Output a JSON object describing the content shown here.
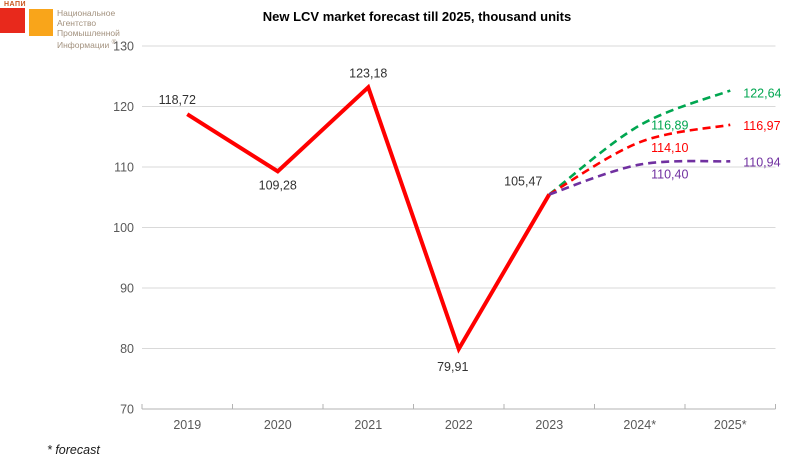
{
  "logo": {
    "brand_small": "НАПИ",
    "lines": [
      "Национальное",
      "Агентство",
      "Промышленной",
      "Информации"
    ],
    "registered_mark": "®",
    "colors": {
      "red_square": "#e8291c",
      "orange_square": "#f9a51a"
    }
  },
  "footnote": "* forecast",
  "chart_data": {
    "type": "line",
    "title": "New LCV market forecast till 2025, thousand units",
    "categories": [
      "2019",
      "2020",
      "2021",
      "2022",
      "2023",
      "2024*",
      "2025*"
    ],
    "y_ticks": [
      70,
      80,
      90,
      100,
      110,
      120,
      130
    ],
    "ylim": [
      70,
      130
    ],
    "grid": "horizontal",
    "legend": "none",
    "series": [
      {
        "name": "actual",
        "style": "solid",
        "color": "#ff0000",
        "label_color": "#323232",
        "start_index": 0,
        "values": [
          118.72,
          109.28,
          123.18,
          79.91,
          105.47
        ],
        "labels": [
          "118,72",
          "109,28",
          "123,18",
          "79,91",
          "105,47"
        ]
      },
      {
        "name": "forecast-optimistic",
        "style": "dashed",
        "color": "#00a650",
        "label_color": "#00a650",
        "start_index": 4,
        "values": [
          105.47,
          116.89,
          122.64
        ],
        "labels": [
          null,
          "116,89",
          "122,64"
        ]
      },
      {
        "name": "forecast-base",
        "style": "dashed",
        "color": "#ff0000",
        "label_color": "#ff0000",
        "start_index": 4,
        "values": [
          105.47,
          114.1,
          116.97
        ],
        "labels": [
          null,
          "114,10",
          "116,97"
        ]
      },
      {
        "name": "forecast-pessimistic",
        "style": "dashed",
        "color": "#7030a0",
        "label_color": "#7030a0",
        "start_index": 4,
        "values": [
          105.47,
          110.4,
          110.94
        ],
        "labels": [
          null,
          "110,40",
          "110,94"
        ]
      }
    ]
  }
}
